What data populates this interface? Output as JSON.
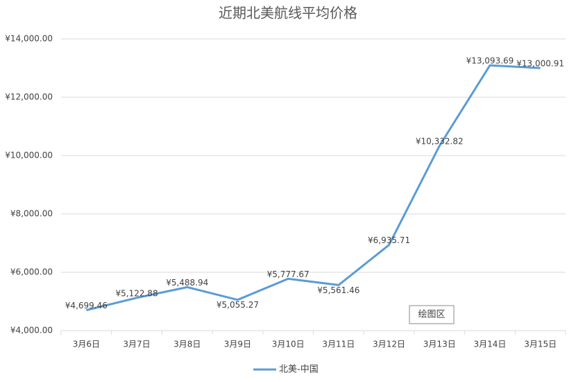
{
  "chart_data": {
    "type": "line",
    "title": "近期北美航线平均价格",
    "categories": [
      "3月6日",
      "3月7日",
      "3月8日",
      "3月9日",
      "3月10日",
      "3月11日",
      "3月12日",
      "3月13日",
      "3月14日",
      "3月15日"
    ],
    "series": [
      {
        "name": "北美-中国",
        "color": "#5b9bd5",
        "values": [
          4699.46,
          5122.88,
          5488.94,
          5055.27,
          5777.67,
          5561.46,
          6935.71,
          10332.82,
          13093.69,
          13000.91
        ],
        "value_labels": [
          "¥4,699.46",
          "¥5,122.88",
          "¥5,488.94",
          "¥5,055.27",
          "¥5,777.67",
          "¥5,561.46",
          "¥6,935.71",
          "¥10,332.82",
          "¥13,093.69",
          "¥13,000.91"
        ]
      }
    ],
    "ylim": [
      4000,
      14000
    ],
    "yticks": [
      {
        "value": 4000,
        "label": "¥4,000.00"
      },
      {
        "value": 6000,
        "label": "¥6,000.00"
      },
      {
        "value": 8000,
        "label": "¥8,000.00"
      },
      {
        "value": 10000,
        "label": "¥10,000.00"
      },
      {
        "value": 12000,
        "label": "¥12,000.00"
      },
      {
        "value": 14000,
        "label": "¥14,000.00"
      }
    ],
    "grid": true,
    "legend": "bottom",
    "annotation": "绘图区"
  }
}
